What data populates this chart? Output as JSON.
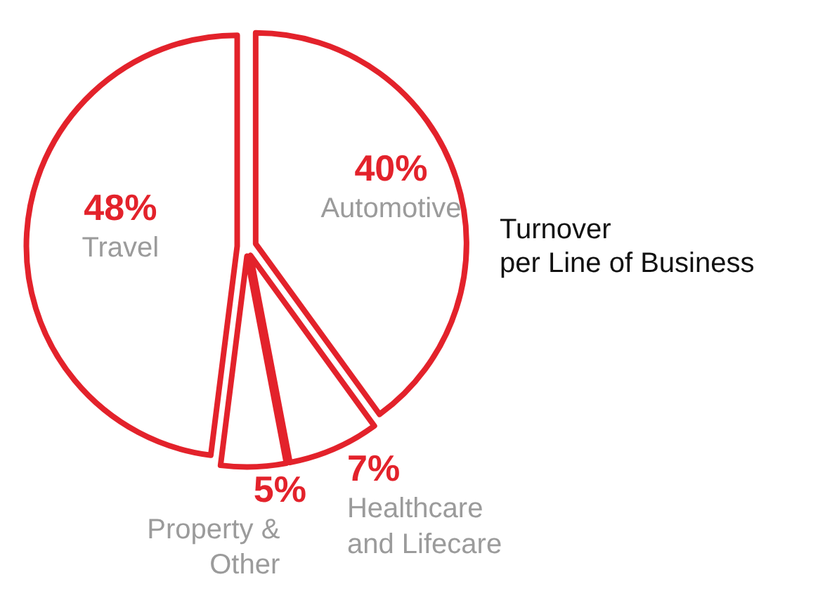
{
  "chart_data": {
    "type": "pie",
    "title": "Turnover\nper Line of Business",
    "categories": [
      "Automotive",
      "Healthcare\nand Lifecare",
      "Property &\nOther",
      "Travel"
    ],
    "values": [
      40,
      7,
      5,
      48
    ],
    "value_labels": [
      "40%",
      "7%",
      "5%",
      "48%"
    ],
    "colors": [
      "#e3222b",
      "#e3222b",
      "#e3222b",
      "#e3222b"
    ]
  }
}
